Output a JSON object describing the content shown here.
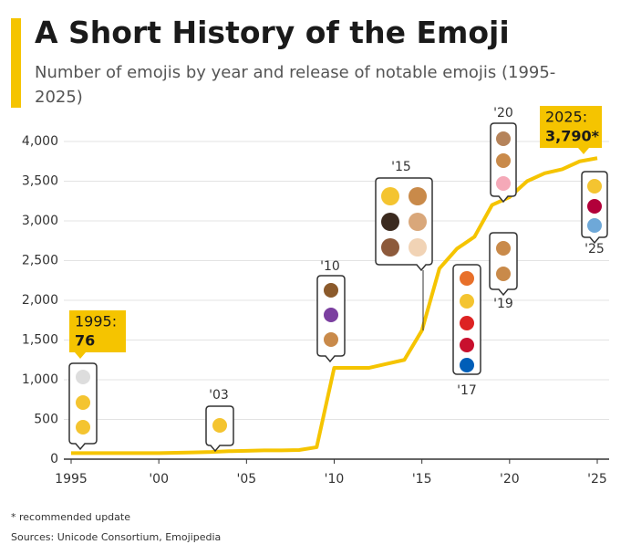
{
  "chart_data": {
    "type": "line",
    "title": "A Short History of the Emoji",
    "subtitle": "Number of emojis by year and release of notable emojis (1995-2025)",
    "x": [
      1995,
      1996,
      1997,
      1998,
      1999,
      2000,
      2001,
      2002,
      2003,
      2004,
      2005,
      2006,
      2007,
      2008,
      2009,
      2010,
      2011,
      2012,
      2013,
      2014,
      2015,
      2016,
      2017,
      2018,
      2019,
      2020,
      2021,
      2022,
      2023,
      2024,
      2025
    ],
    "series": [
      {
        "name": "Emojis",
        "color": "#f5c400",
        "values": [
          76,
          76,
          76,
          76,
          76,
          76,
          80,
          85,
          90,
          100,
          105,
          110,
          110,
          115,
          150,
          1150,
          1150,
          1150,
          1200,
          1250,
          1620,
          2400,
          2650,
          2800,
          3200,
          3300,
          3500,
          3600,
          3650,
          3750,
          3790
        ],
        "value_labels": [
          "76",
          null,
          null,
          null,
          null,
          null,
          null,
          null,
          null,
          null,
          null,
          null,
          null,
          null,
          null,
          null,
          null,
          null,
          null,
          null,
          null,
          null,
          null,
          null,
          null,
          null,
          null,
          null,
          null,
          null,
          "3,790*"
        ]
      }
    ],
    "xlim": [
      1995,
      2025
    ],
    "xticks": [
      {
        "value": 1995,
        "label": "1995"
      },
      {
        "value": 2000,
        "label": "'00"
      },
      {
        "value": 2005,
        "label": "'05"
      },
      {
        "value": 2010,
        "label": "'10"
      },
      {
        "value": 2015,
        "label": "'15"
      },
      {
        "value": 2020,
        "label": "'20"
      },
      {
        "value": 2025,
        "label": "'25"
      }
    ],
    "ylim": [
      0,
      4000
    ],
    "yticks": [
      0,
      500,
      {
        "value": 1000,
        "label": "1,000"
      },
      {
        "value": 1500,
        "label": "1,500"
      },
      {
        "value": 2000,
        "label": "2,000"
      },
      {
        "value": 2500,
        "label": "2,500"
      },
      {
        "value": 3000,
        "label": "3,000"
      },
      {
        "value": 3500,
        "label": "3,500"
      },
      {
        "value": 4000,
        "label": "4,000"
      }
    ],
    "grid": true,
    "annotations": [
      "1995:",
      "2025:",
      "'03",
      "'10",
      "'15",
      "'17",
      "'19",
      "'20",
      "'25"
    ],
    "footnote": "* recommended update",
    "source": "Sources: Unicode Consortium, Emojipedia"
  }
}
